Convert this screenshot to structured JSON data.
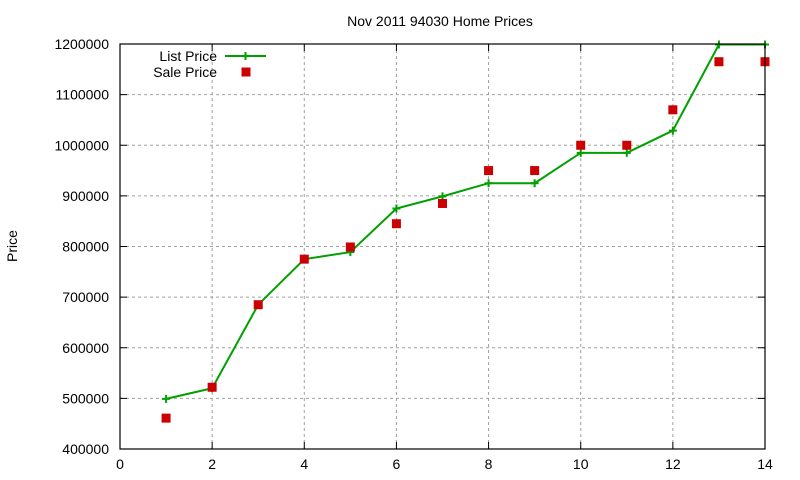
{
  "chart_data": {
    "type": "line",
    "title": "Nov 2011 94030 Home Prices",
    "xlabel": "",
    "ylabel": "Price",
    "xlim": [
      0,
      14
    ],
    "ylim": [
      400000,
      1200000
    ],
    "x_ticks": [
      0,
      2,
      4,
      6,
      8,
      10,
      12,
      14
    ],
    "y_ticks": [
      400000,
      500000,
      600000,
      700000,
      800000,
      900000,
      1000000,
      1100000,
      1200000
    ],
    "grid": true,
    "legend_position": "top-left",
    "x": [
      1,
      2,
      3,
      4,
      5,
      6,
      7,
      8,
      9,
      10,
      11,
      12,
      13,
      14
    ],
    "series": [
      {
        "name": "List Price",
        "style": "linespoints",
        "marker": "plus",
        "color": "#00a000",
        "values": [
          499000,
          520000,
          685000,
          775000,
          789000,
          875000,
          899000,
          925000,
          925000,
          985000,
          985000,
          1029000,
          1199000,
          1199000
        ]
      },
      {
        "name": "Sale Price",
        "style": "points",
        "marker": "square",
        "color": "#cc0000",
        "values": [
          461000,
          522000,
          685000,
          775000,
          799000,
          845000,
          885000,
          950000,
          950000,
          1000000,
          1000000,
          1070000,
          1165000,
          1165000
        ]
      }
    ]
  }
}
